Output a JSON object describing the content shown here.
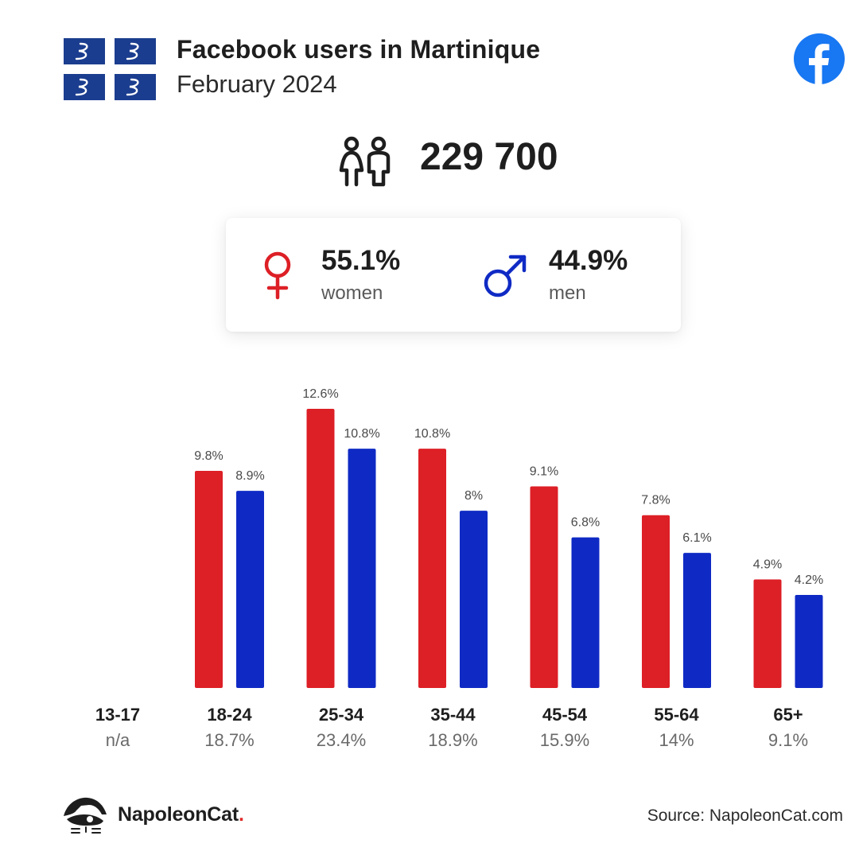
{
  "header": {
    "title": "Facebook users in Martinique",
    "subtitle": "February 2024",
    "flag_icon": "martinique-flag-icon",
    "brand_icon": "facebook-icon"
  },
  "total": {
    "icon": "people-icon",
    "value": "229 700"
  },
  "gender": {
    "women": {
      "icon": "venus-icon",
      "percent": "55.1%",
      "label": "women",
      "color": "#dd1f26"
    },
    "men": {
      "icon": "mars-icon",
      "percent": "44.9%",
      "label": "men",
      "color": "#0f2ac4"
    }
  },
  "chart_data": {
    "type": "bar",
    "categories": [
      "13-17",
      "18-24",
      "25-34",
      "35-44",
      "45-54",
      "55-64",
      "65+"
    ],
    "category_totals": [
      "n/a",
      "18.7%",
      "23.4%",
      "18.9%",
      "15.9%",
      "14%",
      "9.1%"
    ],
    "series": [
      {
        "color": "#dd1f26",
        "values": [
          null,
          9.8,
          12.6,
          10.8,
          9.1,
          7.8,
          4.9
        ],
        "labels": [
          "",
          "9.8%",
          "12.6%",
          "10.8%",
          "9.1%",
          "7.8%",
          "4.9%"
        ]
      },
      {
        "color": "#0f2ac4",
        "values": [
          null,
          8.9,
          10.8,
          8,
          6.8,
          6.1,
          4.2
        ],
        "labels": [
          "",
          "8.9%",
          "10.8%",
          "8%",
          "6.8%",
          "6.1%",
          "4.2%"
        ]
      }
    ],
    "ylim": [
      0,
      12.6
    ],
    "grid": false,
    "legend": "none"
  },
  "footer": {
    "brand_name": "NapoleonCat",
    "brand_dot": ".",
    "source": "Source: NapoleonCat.com",
    "logo_icon": "napoleoncat-logo-icon"
  }
}
